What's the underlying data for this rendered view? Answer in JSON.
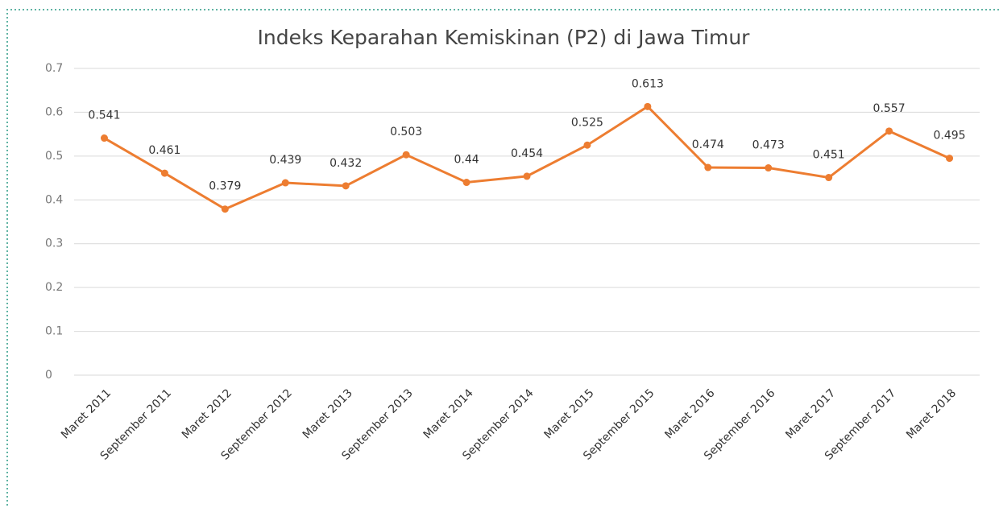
{
  "chart_data": {
    "type": "line",
    "title": "Indeks Keparahan Kemiskinan (P2) di Jawa Timur",
    "categories": [
      "Maret 2011",
      "September 2011",
      "Maret 2012",
      "September 2012",
      "Maret 2013",
      "September 2013",
      "Maret 2014",
      "September 2014",
      "Maret 2015",
      "September 2015",
      "Maret 2016",
      "September 2016",
      "Maret 2017",
      "September 2017",
      "Maret 2018"
    ],
    "values": [
      0.541,
      0.461,
      0.379,
      0.439,
      0.432,
      0.503,
      0.44,
      0.454,
      0.525,
      0.613,
      0.474,
      0.473,
      0.451,
      0.557,
      0.495
    ],
    "color": "#ed7d31",
    "ylim": [
      0,
      0.7
    ],
    "yticks": [
      0,
      0.1,
      0.2,
      0.3,
      0.4,
      0.5,
      0.6,
      0.7
    ],
    "grid": true
  }
}
